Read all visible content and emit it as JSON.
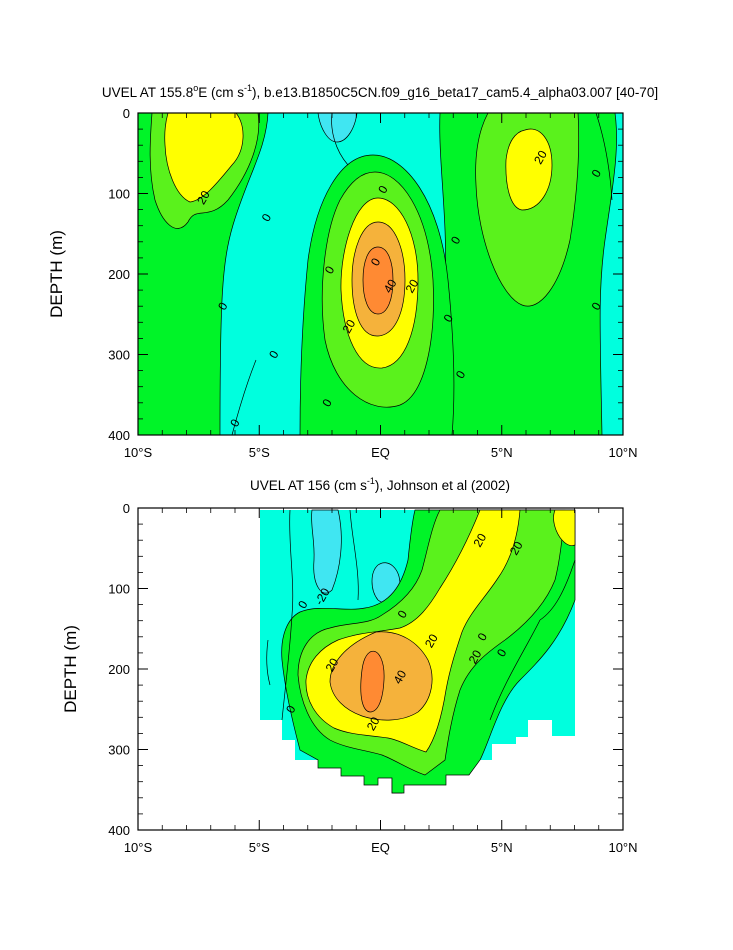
{
  "palette": {
    "m20": "#40e6f2",
    "m0": "#00ffde",
    "p0": "#00f428",
    "p20": "#5af21c",
    "p40": "#ffff00",
    "p60": "#f5b23b",
    "p80": "#ff8a33",
    "line": "#000000"
  },
  "chart_data": [
    {
      "type": "contour",
      "title_pre": "UVEL AT 155.8",
      "title_sup1": "o",
      "title_mid": "E (cm s",
      "title_sup2": "-1",
      "title_post": "), b.e13.B1850C5CN.f09_g16_beta17_cam5.4_alpha03.007 [40-70]",
      "ylabel": "DEPTH (m)",
      "xlim": [
        -10,
        10
      ],
      "ylim": [
        400,
        0
      ],
      "xticks": [
        {
          "v": -10,
          "label": "10°S"
        },
        {
          "v": -5,
          "label": "5°S"
        },
        {
          "v": 0,
          "label": "EQ"
        },
        {
          "v": 5,
          "label": "5°N"
        },
        {
          "v": 10,
          "label": "10°N"
        }
      ],
      "yticks": [
        {
          "v": 0,
          "label": "0"
        },
        {
          "v": 100,
          "label": "100"
        },
        {
          "v": 200,
          "label": "200"
        },
        {
          "v": 300,
          "label": "300"
        },
        {
          "v": 400,
          "label": "400"
        }
      ],
      "contour_labels": [
        {
          "x": -7.3,
          "y": 105,
          "text": "20"
        },
        {
          "x": -4.7,
          "y": 130,
          "text": "0"
        },
        {
          "x": -6.5,
          "y": 240,
          "text": "0"
        },
        {
          "x": -4.4,
          "y": 300,
          "text": "0"
        },
        {
          "x": -6.0,
          "y": 385,
          "text": "0"
        },
        {
          "x": -2.1,
          "y": 195,
          "text": "0"
        },
        {
          "x": 0.1,
          "y": 95,
          "text": "0"
        },
        {
          "x": -2.2,
          "y": 360,
          "text": "0"
        },
        {
          "x": -1.3,
          "y": 265,
          "text": "20"
        },
        {
          "x": 0.4,
          "y": 215,
          "text": "40"
        },
        {
          "x": 1.3,
          "y": 215,
          "text": "20"
        },
        {
          "x": -0.2,
          "y": 185,
          "text": "0"
        },
        {
          "x": 3.1,
          "y": 158,
          "text": "0"
        },
        {
          "x": 2.8,
          "y": 255,
          "text": "0"
        },
        {
          "x": 3.3,
          "y": 325,
          "text": "0"
        },
        {
          "x": 6.6,
          "y": 55,
          "text": "20"
        },
        {
          "x": 8.9,
          "y": 75,
          "text": "0"
        },
        {
          "x": 8.9,
          "y": 240,
          "text": "0"
        }
      ]
    },
    {
      "type": "contour",
      "title_pre": "UVEL AT 156 (cm s",
      "title_sup2": "-1",
      "title_post": "), Johnson et al (2002)",
      "ylabel": "DEPTH (m)",
      "xlim": [
        -10,
        10
      ],
      "ylim": [
        400,
        0
      ],
      "xticks": [
        {
          "v": -10,
          "label": "10°S"
        },
        {
          "v": -5,
          "label": "5°S"
        },
        {
          "v": 0,
          "label": "EQ"
        },
        {
          "v": 5,
          "label": "5°N"
        },
        {
          "v": 10,
          "label": "10°N"
        }
      ],
      "yticks": [
        {
          "v": 0,
          "label": "0"
        },
        {
          "v": 100,
          "label": "100"
        },
        {
          "v": 200,
          "label": "200"
        },
        {
          "v": 300,
          "label": "300"
        },
        {
          "v": 400,
          "label": "400"
        }
      ],
      "contour_labels": [
        {
          "x": -2.4,
          "y": 110,
          "text": "-20"
        },
        {
          "x": -3.2,
          "y": 120,
          "text": "0"
        },
        {
          "x": -3.7,
          "y": 250,
          "text": "0"
        },
        {
          "x": 0.9,
          "y": 132,
          "text": "0"
        },
        {
          "x": 2.1,
          "y": 165,
          "text": "20"
        },
        {
          "x": -2.0,
          "y": 195,
          "text": "20"
        },
        {
          "x": 0.8,
          "y": 210,
          "text": "40"
        },
        {
          "x": -0.3,
          "y": 268,
          "text": "20"
        },
        {
          "x": 3.9,
          "y": 185,
          "text": "20"
        },
        {
          "x": 5.0,
          "y": 180,
          "text": "0"
        },
        {
          "x": 4.1,
          "y": 40,
          "text": "20"
        },
        {
          "x": 5.6,
          "y": 50,
          "text": "20"
        },
        {
          "x": 4.2,
          "y": 160,
          "text": "0"
        }
      ]
    }
  ]
}
